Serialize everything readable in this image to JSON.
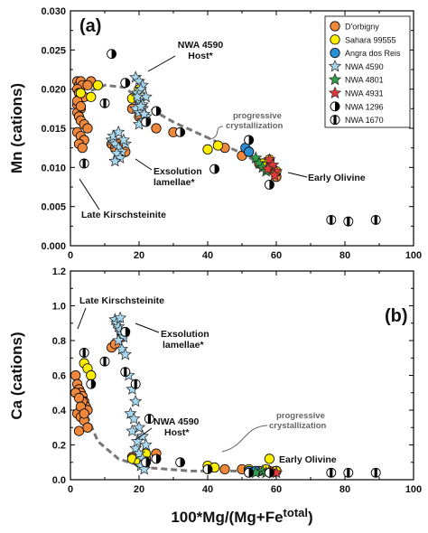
{
  "figure": {
    "x_axis_title": "100*Mg/(Mg+Fe",
    "x_axis_title_sup": "total",
    "x_axis_title_close": ")"
  },
  "colors": {
    "dorbigny": "#f0883c",
    "sahara": "#ffee00",
    "angra": "#2b8fd6",
    "nwa4590": "#a8d8f0",
    "nwa4801": "#2e9e48",
    "nwa4931": "#e23a3a",
    "trend": "#777777"
  },
  "legend": [
    {
      "label": "D'orbigny",
      "marker": "circle",
      "fill": "#f0883c"
    },
    {
      "label": "Sahara 99555",
      "marker": "circle",
      "fill": "#ffee00"
    },
    {
      "label": "Angra dos Reis",
      "marker": "circle",
      "fill": "#2b8fd6"
    },
    {
      "label": "NWA 4590",
      "marker": "star",
      "fill": "#a8d8f0"
    },
    {
      "label": "NWA 4801",
      "marker": "star",
      "fill": "#2e9e48"
    },
    {
      "label": "NWA 4931",
      "marker": "star",
      "fill": "#e23a3a"
    },
    {
      "label": "NWA 1296",
      "marker": "halfcircle",
      "fill": "#ffffff"
    },
    {
      "label": "NWA 1670",
      "marker": "barcircle",
      "fill": "#ffffff"
    }
  ],
  "chart_data": [
    {
      "type": "scatter",
      "panel": "(a)",
      "ylabel": "Mn (cations)",
      "xlim": [
        0,
        100
      ],
      "ylim": [
        0,
        0.03
      ],
      "x_ticks": [
        0,
        20,
        40,
        60,
        80,
        100
      ],
      "y_ticks": [
        "0.000",
        "0.005",
        "0.010",
        "0.015",
        "0.020",
        "0.025",
        "0.030"
      ],
      "y_tick_values": [
        0,
        0.005,
        0.01,
        0.015,
        0.02,
        0.025,
        0.03
      ],
      "annotations": {
        "host": [
          "NWA 4590",
          "Host*"
        ],
        "exsolution": [
          "Exsolution",
          "lamellae*"
        ],
        "late": [
          "Late Kirschsteinite"
        ],
        "early": [
          "Early Olivine"
        ],
        "progressive": [
          "progressive",
          "crystallization"
        ]
      },
      "series": [
        {
          "name": "D'orbigny",
          "x": [
            2,
            2.5,
            3,
            3.5,
            2,
            2.5,
            3,
            4,
            2,
            3,
            2,
            2.5,
            3,
            4,
            5,
            2,
            3,
            4,
            2.5,
            3.5,
            2,
            3,
            6,
            5,
            12,
            13,
            14,
            15,
            16,
            18,
            20,
            22,
            25,
            30,
            45,
            50,
            55,
            58,
            60
          ],
          "y": [
            0.021,
            0.0205,
            0.021,
            0.0205,
            0.02,
            0.0195,
            0.019,
            0.019,
            0.018,
            0.0175,
            0.017,
            0.0165,
            0.016,
            0.0155,
            0.015,
            0.0145,
            0.014,
            0.0135,
            0.013,
            0.0125,
            0.0185,
            0.0178,
            0.021,
            0.0205,
            0.013,
            0.0125,
            0.013,
            0.0125,
            0.012,
            0.0175,
            0.0165,
            0.016,
            0.015,
            0.0145,
            0.0125,
            0.0115,
            0.0105,
            0.0098,
            0.0088
          ]
        },
        {
          "name": "Sahara 99555",
          "x": [
            3,
            6,
            8,
            18,
            20,
            40,
            43,
            52,
            56,
            58,
            60
          ],
          "y": [
            0.0195,
            0.019,
            0.0205,
            0.0188,
            0.02,
            0.0123,
            0.0128,
            0.012,
            0.0105,
            0.011,
            0.0095
          ]
        },
        {
          "name": "Angra dos Reis",
          "x": [
            51,
            52
          ],
          "y": [
            0.0125,
            0.012
          ]
        },
        {
          "name": "NWA 4590",
          "x": [
            19,
            20,
            21,
            20.5,
            19.5,
            22,
            20,
            21,
            19,
            20,
            22,
            21,
            19.5,
            20.5,
            21.5,
            20,
            12,
            13,
            14,
            15,
            16,
            13.5,
            14.5,
            12.5,
            15.5,
            14,
            13
          ],
          "y": [
            0.0215,
            0.021,
            0.0205,
            0.02,
            0.0195,
            0.019,
            0.0185,
            0.018,
            0.0175,
            0.017,
            0.0165,
            0.016,
            0.019,
            0.0178,
            0.0168,
            0.0155,
            0.0135,
            0.013,
            0.0125,
            0.012,
            0.013,
            0.0118,
            0.0112,
            0.014,
            0.0135,
            0.0145,
            0.0108
          ]
        },
        {
          "name": "NWA 4801",
          "x": [
            54,
            55,
            56,
            57
          ],
          "y": [
            0.0112,
            0.0105,
            0.01,
            0.0095
          ]
        },
        {
          "name": "NWA 4931",
          "x": [
            58,
            59,
            60,
            57.5,
            59.5
          ],
          "y": [
            0.011,
            0.0103,
            0.0095,
            0.0098,
            0.009
          ]
        },
        {
          "name": "NWA 1296",
          "x": [
            12,
            16,
            22,
            25,
            32,
            42,
            52,
            58
          ],
          "y": [
            0.0245,
            0.0208,
            0.0158,
            0.0172,
            0.0145,
            0.0098,
            0.0135,
            0.0078
          ]
        },
        {
          "name": "NWA 1670",
          "x": [
            4,
            10,
            76,
            81,
            89
          ],
          "y": [
            0.0105,
            0.0182,
            0.0033,
            0.0031,
            0.0033
          ]
        }
      ]
    },
    {
      "type": "scatter",
      "panel": "(b)",
      "ylabel": "Ca (cations)",
      "xlim": [
        0,
        100
      ],
      "ylim": [
        0,
        1.2
      ],
      "x_ticks": [
        0,
        20,
        40,
        60,
        80,
        100
      ],
      "y_ticks": [
        "0.0",
        "0.2",
        "0.4",
        "0.6",
        "0.8",
        "1.0",
        "1.2"
      ],
      "y_tick_values": [
        0,
        0.2,
        0.4,
        0.6,
        0.8,
        1.0,
        1.2
      ],
      "annotations": {
        "late": [
          "Late Kirschsteinite"
        ],
        "exsolution": [
          "Exsolution",
          "lamellae*"
        ],
        "host": [
          "NWA 4590",
          "Host*"
        ],
        "progressive": [
          "progressive",
          "crystallization"
        ],
        "early": [
          "Early Olivine"
        ]
      },
      "series": [
        {
          "name": "D'orbigny",
          "x": [
            1.5,
            2,
            2.5,
            3,
            3.5,
            4,
            4.5,
            5,
            2,
            3,
            4,
            5,
            2.5,
            3.5,
            1.5,
            2.5,
            3,
            4,
            12,
            13,
            15,
            18,
            20,
            22,
            25,
            45,
            50,
            55,
            58,
            60
          ],
          "y": [
            0.6,
            0.55,
            0.52,
            0.5,
            0.48,
            0.45,
            0.42,
            0.4,
            0.38,
            0.36,
            0.34,
            0.3,
            0.28,
            0.45,
            0.5,
            0.47,
            0.42,
            0.38,
            0.76,
            0.78,
            0.82,
            0.13,
            0.11,
            0.12,
            0.15,
            0.06,
            0.06,
            0.05,
            0.05,
            0.05
          ]
        },
        {
          "name": "Sahara 99555",
          "x": [
            4,
            5,
            6,
            18,
            20,
            22,
            40,
            42,
            52,
            57,
            58,
            60
          ],
          "y": [
            0.67,
            0.64,
            0.6,
            0.12,
            0.1,
            0.15,
            0.08,
            0.07,
            0.06,
            0.06,
            0.12,
            0.05
          ]
        },
        {
          "name": "Angra dos Reis",
          "x": [
            52,
            54
          ],
          "y": [
            0.05,
            0.05
          ]
        },
        {
          "name": "NWA 4590",
          "x": [
            13,
            13.5,
            14,
            14.5,
            15,
            15.5,
            14,
            15,
            16,
            17,
            18,
            19,
            17.5,
            18.5,
            20,
            21,
            22,
            19,
            20,
            21,
            22,
            20.5,
            21.5,
            18,
            19.5,
            14.5
          ],
          "y": [
            0.92,
            0.9,
            0.88,
            0.86,
            0.84,
            0.82,
            0.8,
            0.75,
            0.72,
            0.6,
            0.52,
            0.45,
            0.38,
            0.35,
            0.3,
            0.25,
            0.2,
            0.18,
            0.15,
            0.12,
            0.1,
            0.08,
            0.06,
            0.28,
            0.22,
            0.93
          ]
        },
        {
          "name": "NWA 4801",
          "x": [
            54,
            56,
            57
          ],
          "y": [
            0.04,
            0.05,
            0.04
          ]
        },
        {
          "name": "NWA 4931",
          "x": [
            58,
            59,
            60
          ],
          "y": [
            0.05,
            0.04,
            0.04
          ]
        },
        {
          "name": "NWA 1296",
          "x": [
            6,
            16,
            22,
            25,
            32,
            40,
            52,
            58
          ],
          "y": [
            0.55,
            0.85,
            0.1,
            0.12,
            0.1,
            0.06,
            0.04,
            0.04
          ]
        },
        {
          "name": "NWA 1670",
          "x": [
            4,
            10,
            16,
            19,
            23,
            76,
            81,
            89
          ],
          "y": [
            0.73,
            0.68,
            0.62,
            0.55,
            0.35,
            0.04,
            0.04,
            0.04
          ]
        }
      ]
    }
  ]
}
